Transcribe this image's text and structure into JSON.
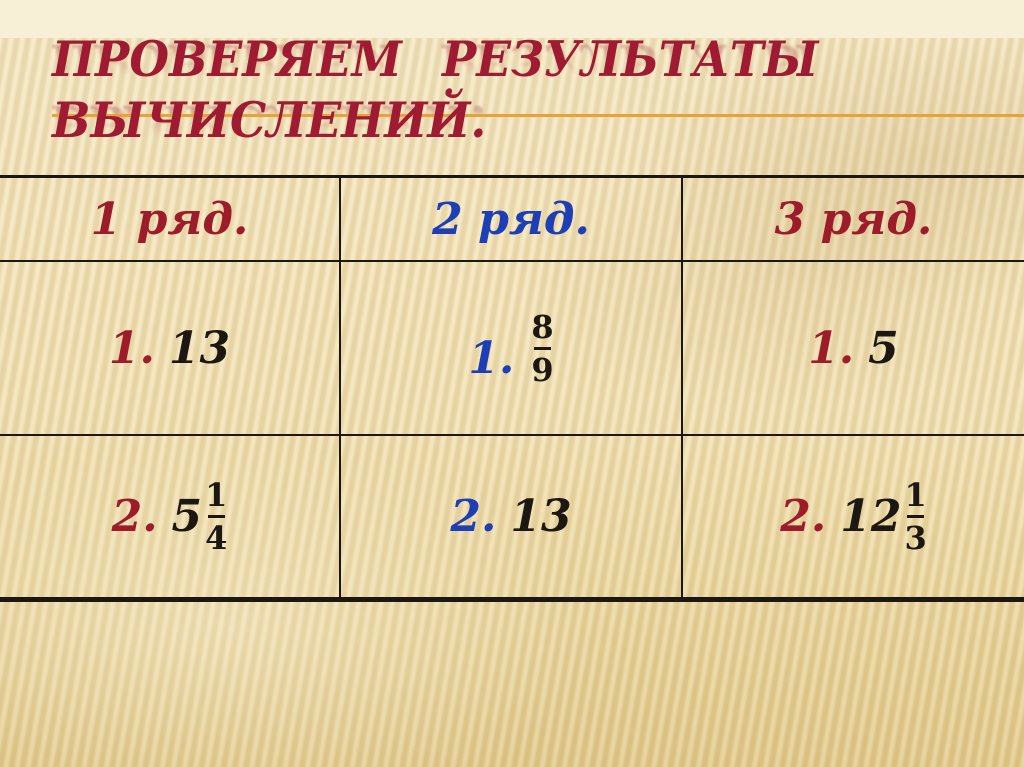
{
  "title": {
    "line1": "ПРОВЕРЯЕМ РЕЗУЛЬТАТЫ",
    "line2": "ВЫЧИСЛЕНИЙ."
  },
  "colors": {
    "title-red": "#9E1B31",
    "table-red": "#9C1C29",
    "accent-blue": "#1E3EB5",
    "accent-orange": "#E8A23C",
    "ink-black": "#1C1712",
    "bg-cream": "#F4E6BE",
    "bg-top-band": "#F8EFD7"
  },
  "table": {
    "headers": [
      {
        "label": "1 ряд."
      },
      {
        "label": "2 ряд."
      },
      {
        "label": "3 ряд."
      }
    ],
    "cells": {
      "r1c1": {
        "index": "1.",
        "value": "13"
      },
      "r1c2": {
        "index": "1.",
        "num": "8",
        "den": "9"
      },
      "r1c3": {
        "index": "1.",
        "value": "5"
      },
      "r2c1": {
        "index": "2.",
        "whole": "5",
        "num": "1",
        "den": "4"
      },
      "r2c2": {
        "index": "2.",
        "value": "13"
      },
      "r2c3": {
        "index": "2.",
        "whole": "12",
        "num": "1",
        "den": "3"
      }
    }
  }
}
